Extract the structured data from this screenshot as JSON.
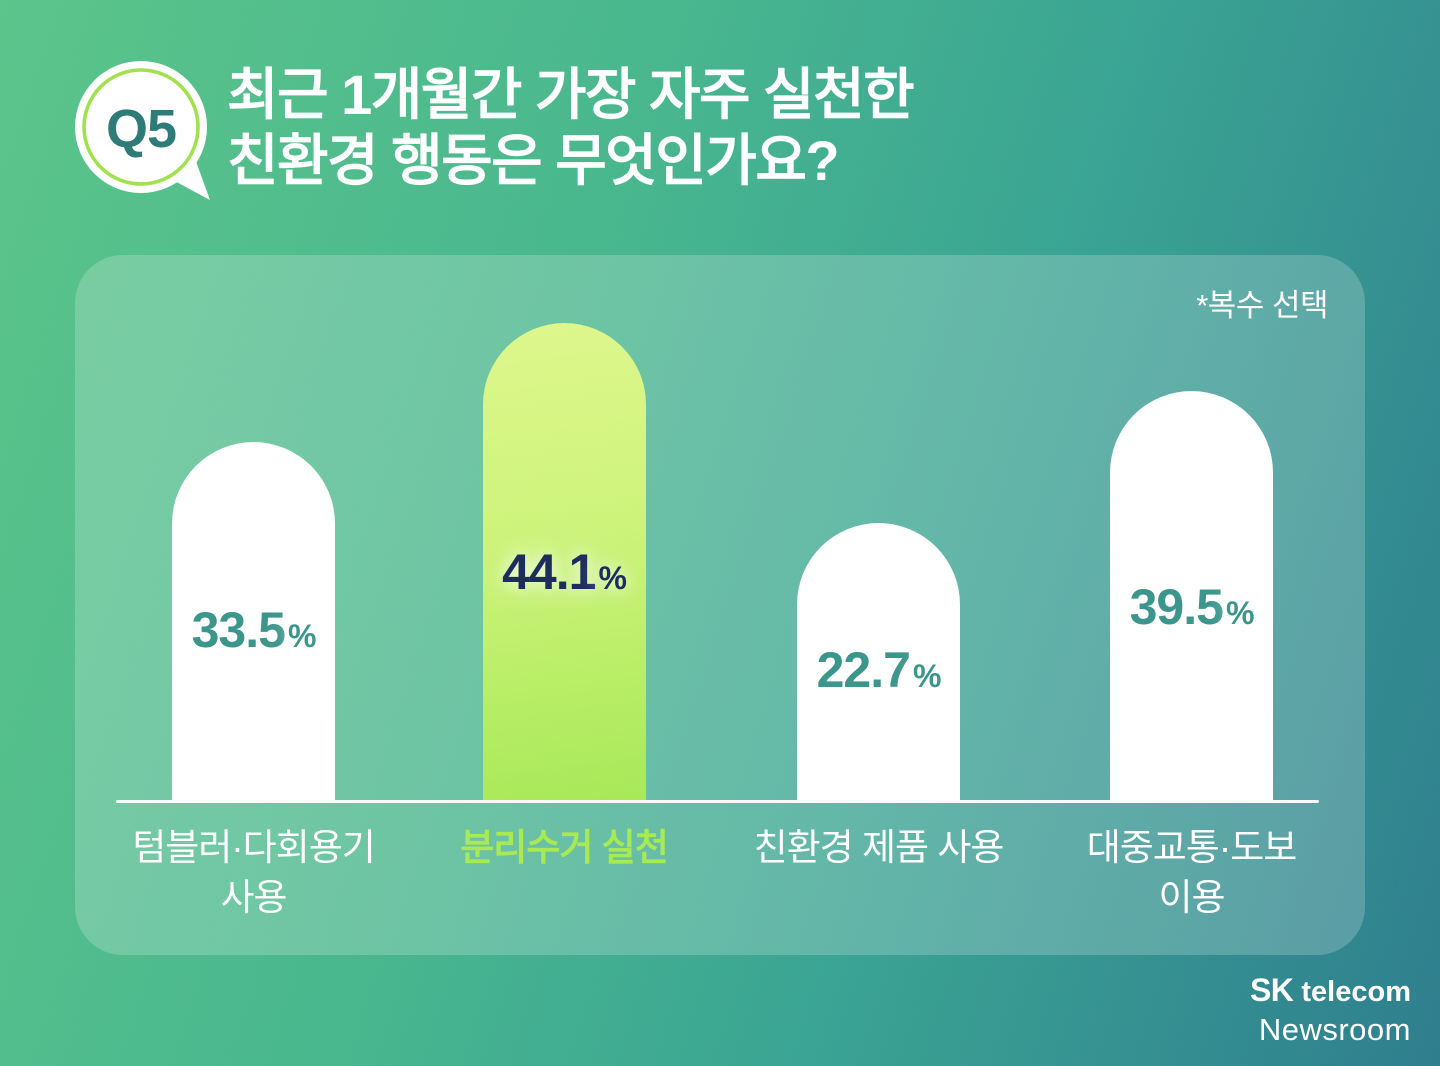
{
  "badge": {
    "label": "Q5"
  },
  "title": {
    "line1": "최근 1개월간 가장 자주 실천한",
    "line2": "친환경 행동은 무엇인가요?"
  },
  "panel": {
    "note": "*복수 선택"
  },
  "chart_data": {
    "type": "bar",
    "title": "최근 1개월간 가장 자주 실천한 친환경 행동은 무엇인가요?",
    "note": "*복수 선택",
    "unit": "%",
    "categories": [
      "텀블러·다회용기\n사용",
      "분리수거 실천",
      "친환경 제품 사용",
      "대중교통·도보\n이용"
    ],
    "values": [
      33.5,
      44.1,
      22.7,
      39.5
    ],
    "value_labels": [
      "33.5",
      "44.1",
      "22.7",
      "39.5"
    ],
    "highlighted_index": 1,
    "legend": "none",
    "grid": false,
    "layout": "rounded-top vertical bars on shared baseline"
  },
  "footer": {
    "brand_bold": "SK",
    "brand_rest": "telecom",
    "brand_line2": "Newsroom"
  },
  "colors": {
    "bg_gradient_start": "#5ac489",
    "bg_gradient_end": "#2e7d8d",
    "panel_overlay": "rgba(255,255,255,0.20)",
    "bar_default": "#ffffff",
    "bar_highlight_top": "#def78c",
    "bar_highlight_bottom": "#a6e956",
    "value_text_default": "#3a948a",
    "value_text_highlight": "#1b2c5c",
    "category_text_default": "#ffffff",
    "category_text_highlight": "#a6ea52",
    "badge_ring": "#9fe24c",
    "badge_text": "#2d7a76",
    "title_text": "#ffffff"
  }
}
